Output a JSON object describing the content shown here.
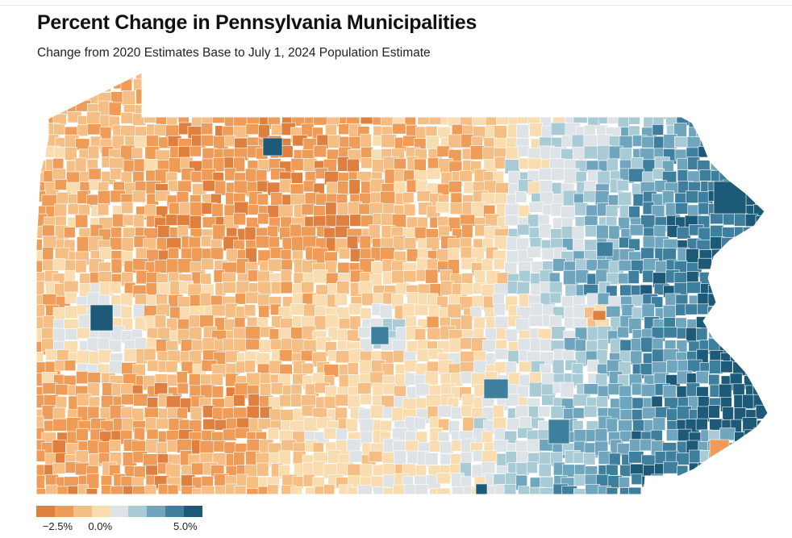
{
  "header": {
    "title": "Percent Change in Pennsylvania Municipalities",
    "subtitle": "Change from 2020 Estimates Base to July 1, 2024 Population Estimate"
  },
  "legend": {
    "ticks": [
      {
        "label": "−2.5%",
        "value": -2.5
      },
      {
        "label": "0.0%",
        "value": 0.0
      },
      {
        "label": "5.0%",
        "value": 5.0
      }
    ],
    "range": [
      -3.75,
      6.0
    ],
    "colors": [
      "#e0803f",
      "#ee9c58",
      "#f4be84",
      "#f9dcaf",
      "#dde3e6",
      "#a9cbd6",
      "#6fa6bd",
      "#3f7f9e",
      "#1d5a78"
    ]
  },
  "map": {
    "state": "Pennsylvania",
    "colors": {
      "strong_decline": "#e0803f",
      "decline": "#ee9c58",
      "slight_decline": "#f4be84",
      "near_zero_neg": "#f9dcaf",
      "no_change": "#dde3e6",
      "slight_growth": "#a9cbd6",
      "growth": "#6fa6bd",
      "strong_growth": "#3f7f9e",
      "highest_growth": "#1d5a78"
    }
  }
}
